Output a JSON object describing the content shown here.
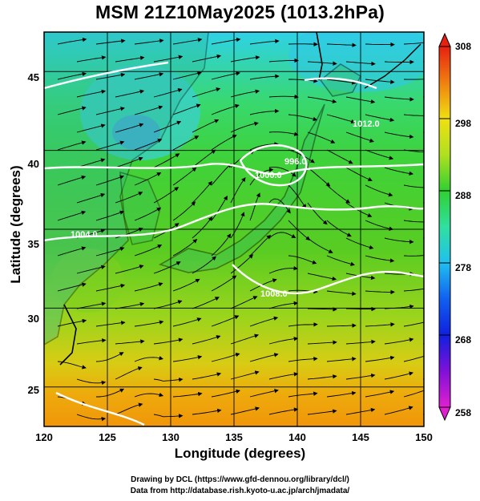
{
  "title": "MSM 21Z10May2025 (1013.2hPa)",
  "x_axis": {
    "label": "Longitude (degrees)",
    "ticks": [
      "120",
      "125",
      "130",
      "135",
      "140",
      "145",
      "150"
    ]
  },
  "y_axis": {
    "label": "Latitude  (degrees)",
    "ticks": [
      "25",
      "30",
      "35",
      "40",
      "45"
    ]
  },
  "colorbar": {
    "ticks": [
      "258",
      "268",
      "278",
      "288",
      "298",
      "308"
    ],
    "min": 258,
    "max": 308
  },
  "contour_labels": [
    "996.0",
    "1000.0",
    "1004.0",
    "1008.0",
    "1012.0"
  ],
  "credits": {
    "line1": "Drawing by DCL (https://www.gfd-dennou.org/library/dcl/)",
    "line2": "Data from http://database.rish.kyoto-u.ac.jp/arch/jmadata/"
  },
  "chart_data": {
    "type": "heatmap",
    "title": "MSM 21Z10May2025 (1013.2hPa)",
    "xlabel": "Longitude (degrees)",
    "ylabel": "Latitude  (degrees)",
    "xlim": [
      120,
      150
    ],
    "ylim": [
      22.5,
      47.5
    ],
    "x_ticks": [
      120,
      125,
      130,
      135,
      140,
      145,
      150
    ],
    "y_ticks": [
      25,
      30,
      35,
      40,
      45
    ],
    "grid": true,
    "colorbar_range": [
      258,
      308
    ],
    "colorbar_ticks": [
      258,
      268,
      278,
      288,
      298,
      308
    ],
    "overlays": [
      "streamlines",
      "pressure contours",
      "coastlines"
    ]
  }
}
